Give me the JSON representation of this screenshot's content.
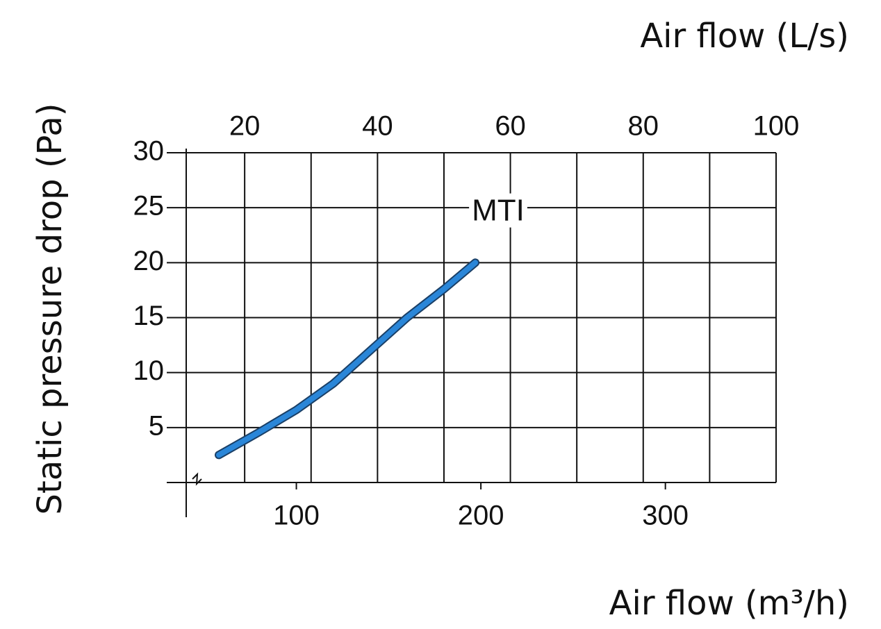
{
  "chart_data": {
    "type": "line",
    "x_title": "Air flow (m³/h)",
    "x2_title": "Air flow (L/s)",
    "y_title": "Static pressure drop (Pa)",
    "annotation": "MTI",
    "x": [
      58,
      80,
      100,
      120,
      140,
      160,
      180,
      197
    ],
    "series": [
      {
        "name": "MTI",
        "color": "#2a86d8",
        "values": [
          2.5,
          4.6,
          6.6,
          9.0,
          12.0,
          15.0,
          17.6,
          20
        ]
      }
    ],
    "xlim": [
      40.3,
      360
    ],
    "xticks": [
      100,
      200,
      300
    ],
    "x2lim": [
      11.2,
      100
    ],
    "x2ticks": [
      20,
      40,
      60,
      80,
      100
    ],
    "x2_minor_ticks": [
      30,
      50,
      70,
      90
    ],
    "ylim": [
      0,
      30
    ],
    "yticks": [
      5,
      10,
      15,
      20,
      25,
      30
    ],
    "grid": true
  }
}
